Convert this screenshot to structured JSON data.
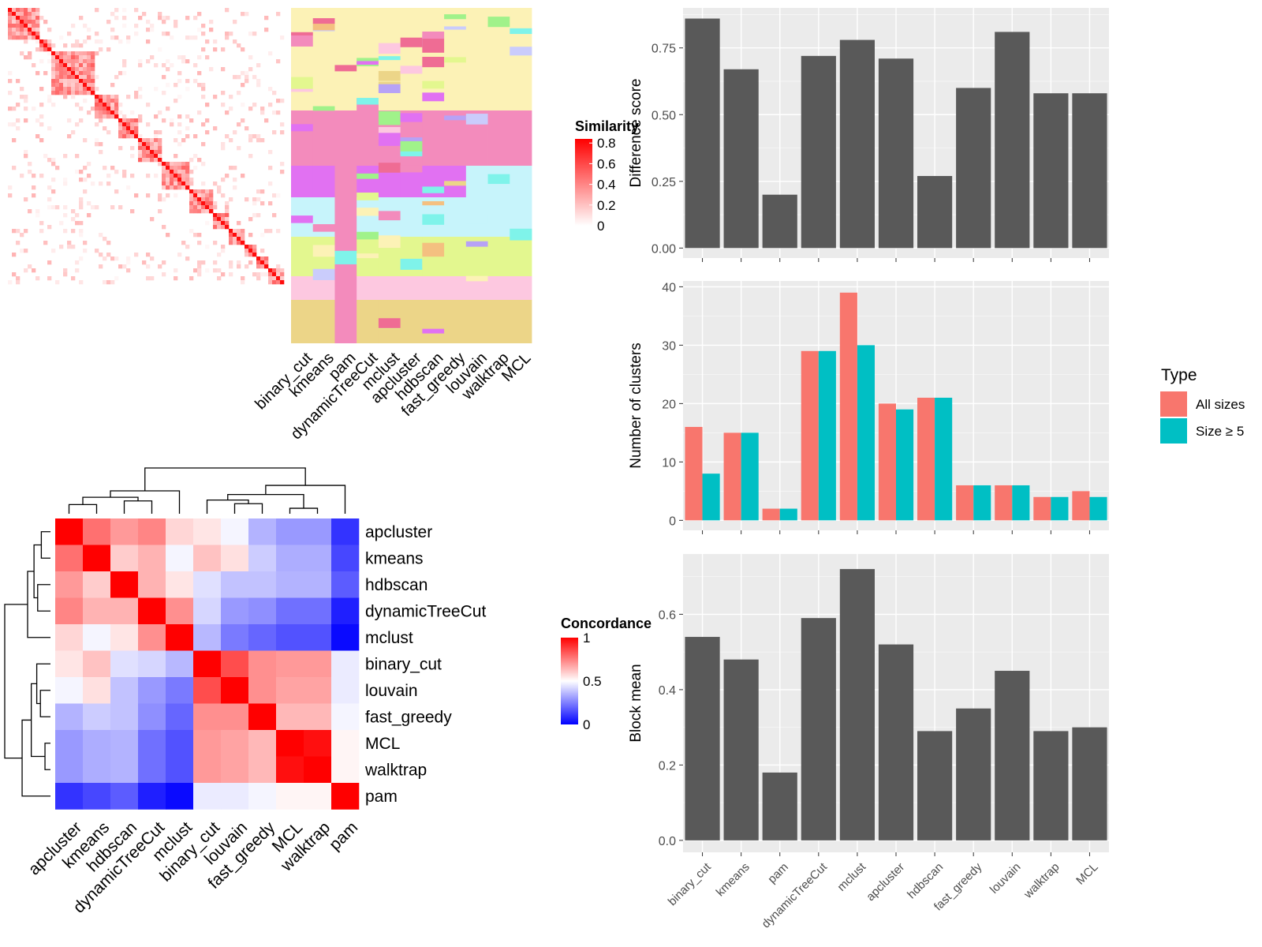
{
  "chart_data": [
    {
      "type": "heatmap",
      "legend_title": "Similarity",
      "legend_ticks": [
        "0.8",
        "0.6",
        "0.4",
        "0.2",
        "0"
      ],
      "legend_placement": "right",
      "methods": [
        "binary_cut",
        "kmeans",
        "pam",
        "dynamicTreeCut",
        "mclust",
        "apcluster",
        "hdbscan",
        "fast_greedy",
        "louvain",
        "walktrap",
        "MCL"
      ],
      "colors": {
        "low": "#ffffff",
        "high": "#ff0000"
      }
    },
    {
      "type": "heatmap",
      "legend_title": "Concordance",
      "legend_ticks": [
        "1",
        "0.5",
        "0"
      ],
      "legend_placement": "right",
      "row_labels": [
        "apcluster",
        "kmeans",
        "hdbscan",
        "dynamicTreeCut",
        "mclust",
        "binary_cut",
        "louvain",
        "fast_greedy",
        "MCL",
        "walktrap",
        "pam"
      ],
      "column_labels": [
        "apcluster",
        "kmeans",
        "hdbscan",
        "dynamicTreeCut",
        "mclust",
        "binary_cut",
        "louvain",
        "fast_greedy",
        "MCL",
        "walktrap",
        "pam"
      ],
      "values": [
        [
          1.0,
          0.78,
          0.7,
          0.74,
          0.58,
          0.55,
          0.48,
          0.35,
          0.3,
          0.3,
          0.1
        ],
        [
          0.78,
          1.0,
          0.6,
          0.65,
          0.48,
          0.62,
          0.56,
          0.4,
          0.34,
          0.34,
          0.14
        ],
        [
          0.7,
          0.6,
          1.0,
          0.65,
          0.55,
          0.44,
          0.38,
          0.38,
          0.35,
          0.35,
          0.18
        ],
        [
          0.74,
          0.65,
          0.65,
          1.0,
          0.72,
          0.42,
          0.3,
          0.28,
          0.22,
          0.22,
          0.06
        ],
        [
          0.58,
          0.48,
          0.55,
          0.72,
          1.0,
          0.36,
          0.24,
          0.2,
          0.16,
          0.16,
          0.02
        ],
        [
          0.55,
          0.62,
          0.44,
          0.42,
          0.36,
          1.0,
          0.85,
          0.72,
          0.7,
          0.7,
          0.46
        ],
        [
          0.48,
          0.56,
          0.38,
          0.3,
          0.24,
          0.85,
          1.0,
          0.72,
          0.68,
          0.68,
          0.46
        ],
        [
          0.35,
          0.4,
          0.38,
          0.28,
          0.2,
          0.72,
          0.72,
          1.0,
          0.64,
          0.64,
          0.48
        ],
        [
          0.3,
          0.34,
          0.35,
          0.22,
          0.16,
          0.7,
          0.68,
          0.64,
          1.0,
          0.97,
          0.52
        ],
        [
          0.3,
          0.34,
          0.35,
          0.22,
          0.16,
          0.7,
          0.68,
          0.64,
          0.97,
          1.0,
          0.52
        ],
        [
          0.1,
          0.14,
          0.18,
          0.06,
          0.02,
          0.46,
          0.46,
          0.48,
          0.52,
          0.52,
          1.0
        ]
      ]
    },
    {
      "type": "bar",
      "categories": [
        "binary_cut",
        "kmeans",
        "pam",
        "dynamicTreeCut",
        "mclust",
        "apcluster",
        "hdbscan",
        "fast_greedy",
        "louvain",
        "walktrap",
        "MCL"
      ],
      "values": [
        0.86,
        0.67,
        0.2,
        0.72,
        0.78,
        0.71,
        0.27,
        0.6,
        0.81,
        0.58,
        0.58
      ],
      "ylabel": "Difference score",
      "ylim": [
        0,
        0.9
      ],
      "yticks": [
        0.0,
        0.25,
        0.5,
        0.75
      ],
      "ytick_labels": [
        "0.00",
        "0.25",
        "0.50",
        "0.75"
      ],
      "grid": true
    },
    {
      "type": "bar",
      "categories": [
        "binary_cut",
        "kmeans",
        "pam",
        "dynamicTreeCut",
        "mclust",
        "apcluster",
        "hdbscan",
        "fast_greedy",
        "louvain",
        "walktrap",
        "MCL"
      ],
      "series": [
        {
          "name": "All sizes",
          "color": "#f8766d",
          "values": [
            16,
            15,
            2,
            29,
            39,
            20,
            21,
            6,
            6,
            4,
            5
          ]
        },
        {
          "name": "Size ≥ 5",
          "color": "#00bfc4",
          "values": [
            8,
            15,
            2,
            29,
            30,
            19,
            21,
            6,
            6,
            4,
            4
          ]
        }
      ],
      "ylabel": "Number of clusters",
      "ylim": [
        0,
        41
      ],
      "yticks": [
        0,
        10,
        20,
        30,
        40
      ],
      "ytick_labels": [
        "0",
        "10",
        "20",
        "30",
        "40"
      ],
      "legend_title": "Type",
      "legend_placement": "right",
      "grid": true
    },
    {
      "type": "bar",
      "categories": [
        "binary_cut",
        "kmeans",
        "pam",
        "dynamicTreeCut",
        "mclust",
        "apcluster",
        "hdbscan",
        "fast_greedy",
        "louvain",
        "walktrap",
        "MCL"
      ],
      "values": [
        0.54,
        0.48,
        0.18,
        0.59,
        0.72,
        0.52,
        0.29,
        0.35,
        0.45,
        0.29,
        0.3
      ],
      "ylabel": "Block mean",
      "ylim": [
        0,
        0.76
      ],
      "yticks": [
        0.0,
        0.2,
        0.4,
        0.6
      ],
      "ytick_labels": [
        "0.0",
        "0.2",
        "0.4",
        "0.6"
      ],
      "grid": true
    }
  ],
  "colors": {
    "bar_fill": "#595959",
    "panel_bg": "#ebebeb",
    "grid": "#ffffff"
  }
}
